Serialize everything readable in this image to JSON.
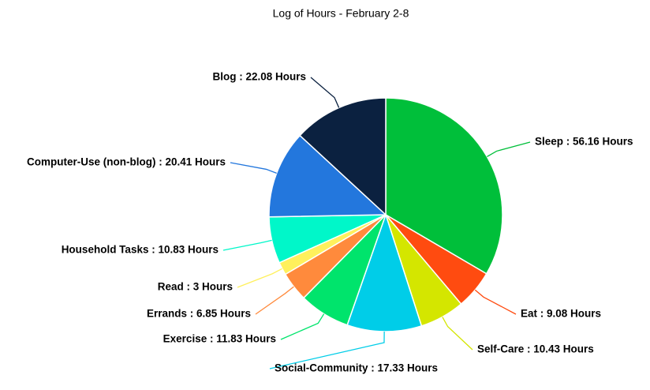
{
  "chart_data": {
    "type": "pie",
    "title": "Log of Hours - February 2-8",
    "values": [
      56.16,
      9.08,
      10.43,
      17.33,
      11.83,
      6.85,
      3,
      10.83,
      20.41,
      22.08
    ],
    "value_labels": [
      "Sleep : 56.16 Hours",
      "Eat : 9.08 Hours",
      "Self-Care : 10.43 Hours",
      "Social-Community : 17.33 Hours",
      "Exercise : 11.83 Hours",
      "Errands : 6.85 Hours",
      "Read : 3 Hours",
      "Household Tasks : 10.83 Hours",
      "Computer-Use (non-blog) : 20.41 Hours",
      "Blog : 22.08 Hours"
    ],
    "colors": [
      "#00bf3a",
      "#ff4b10",
      "#d4e600",
      "#00cde8",
      "#00e46c",
      "#ff8a3c",
      "#fff05c",
      "#00f7c9",
      "#2377dd",
      "#0b2140"
    ]
  }
}
